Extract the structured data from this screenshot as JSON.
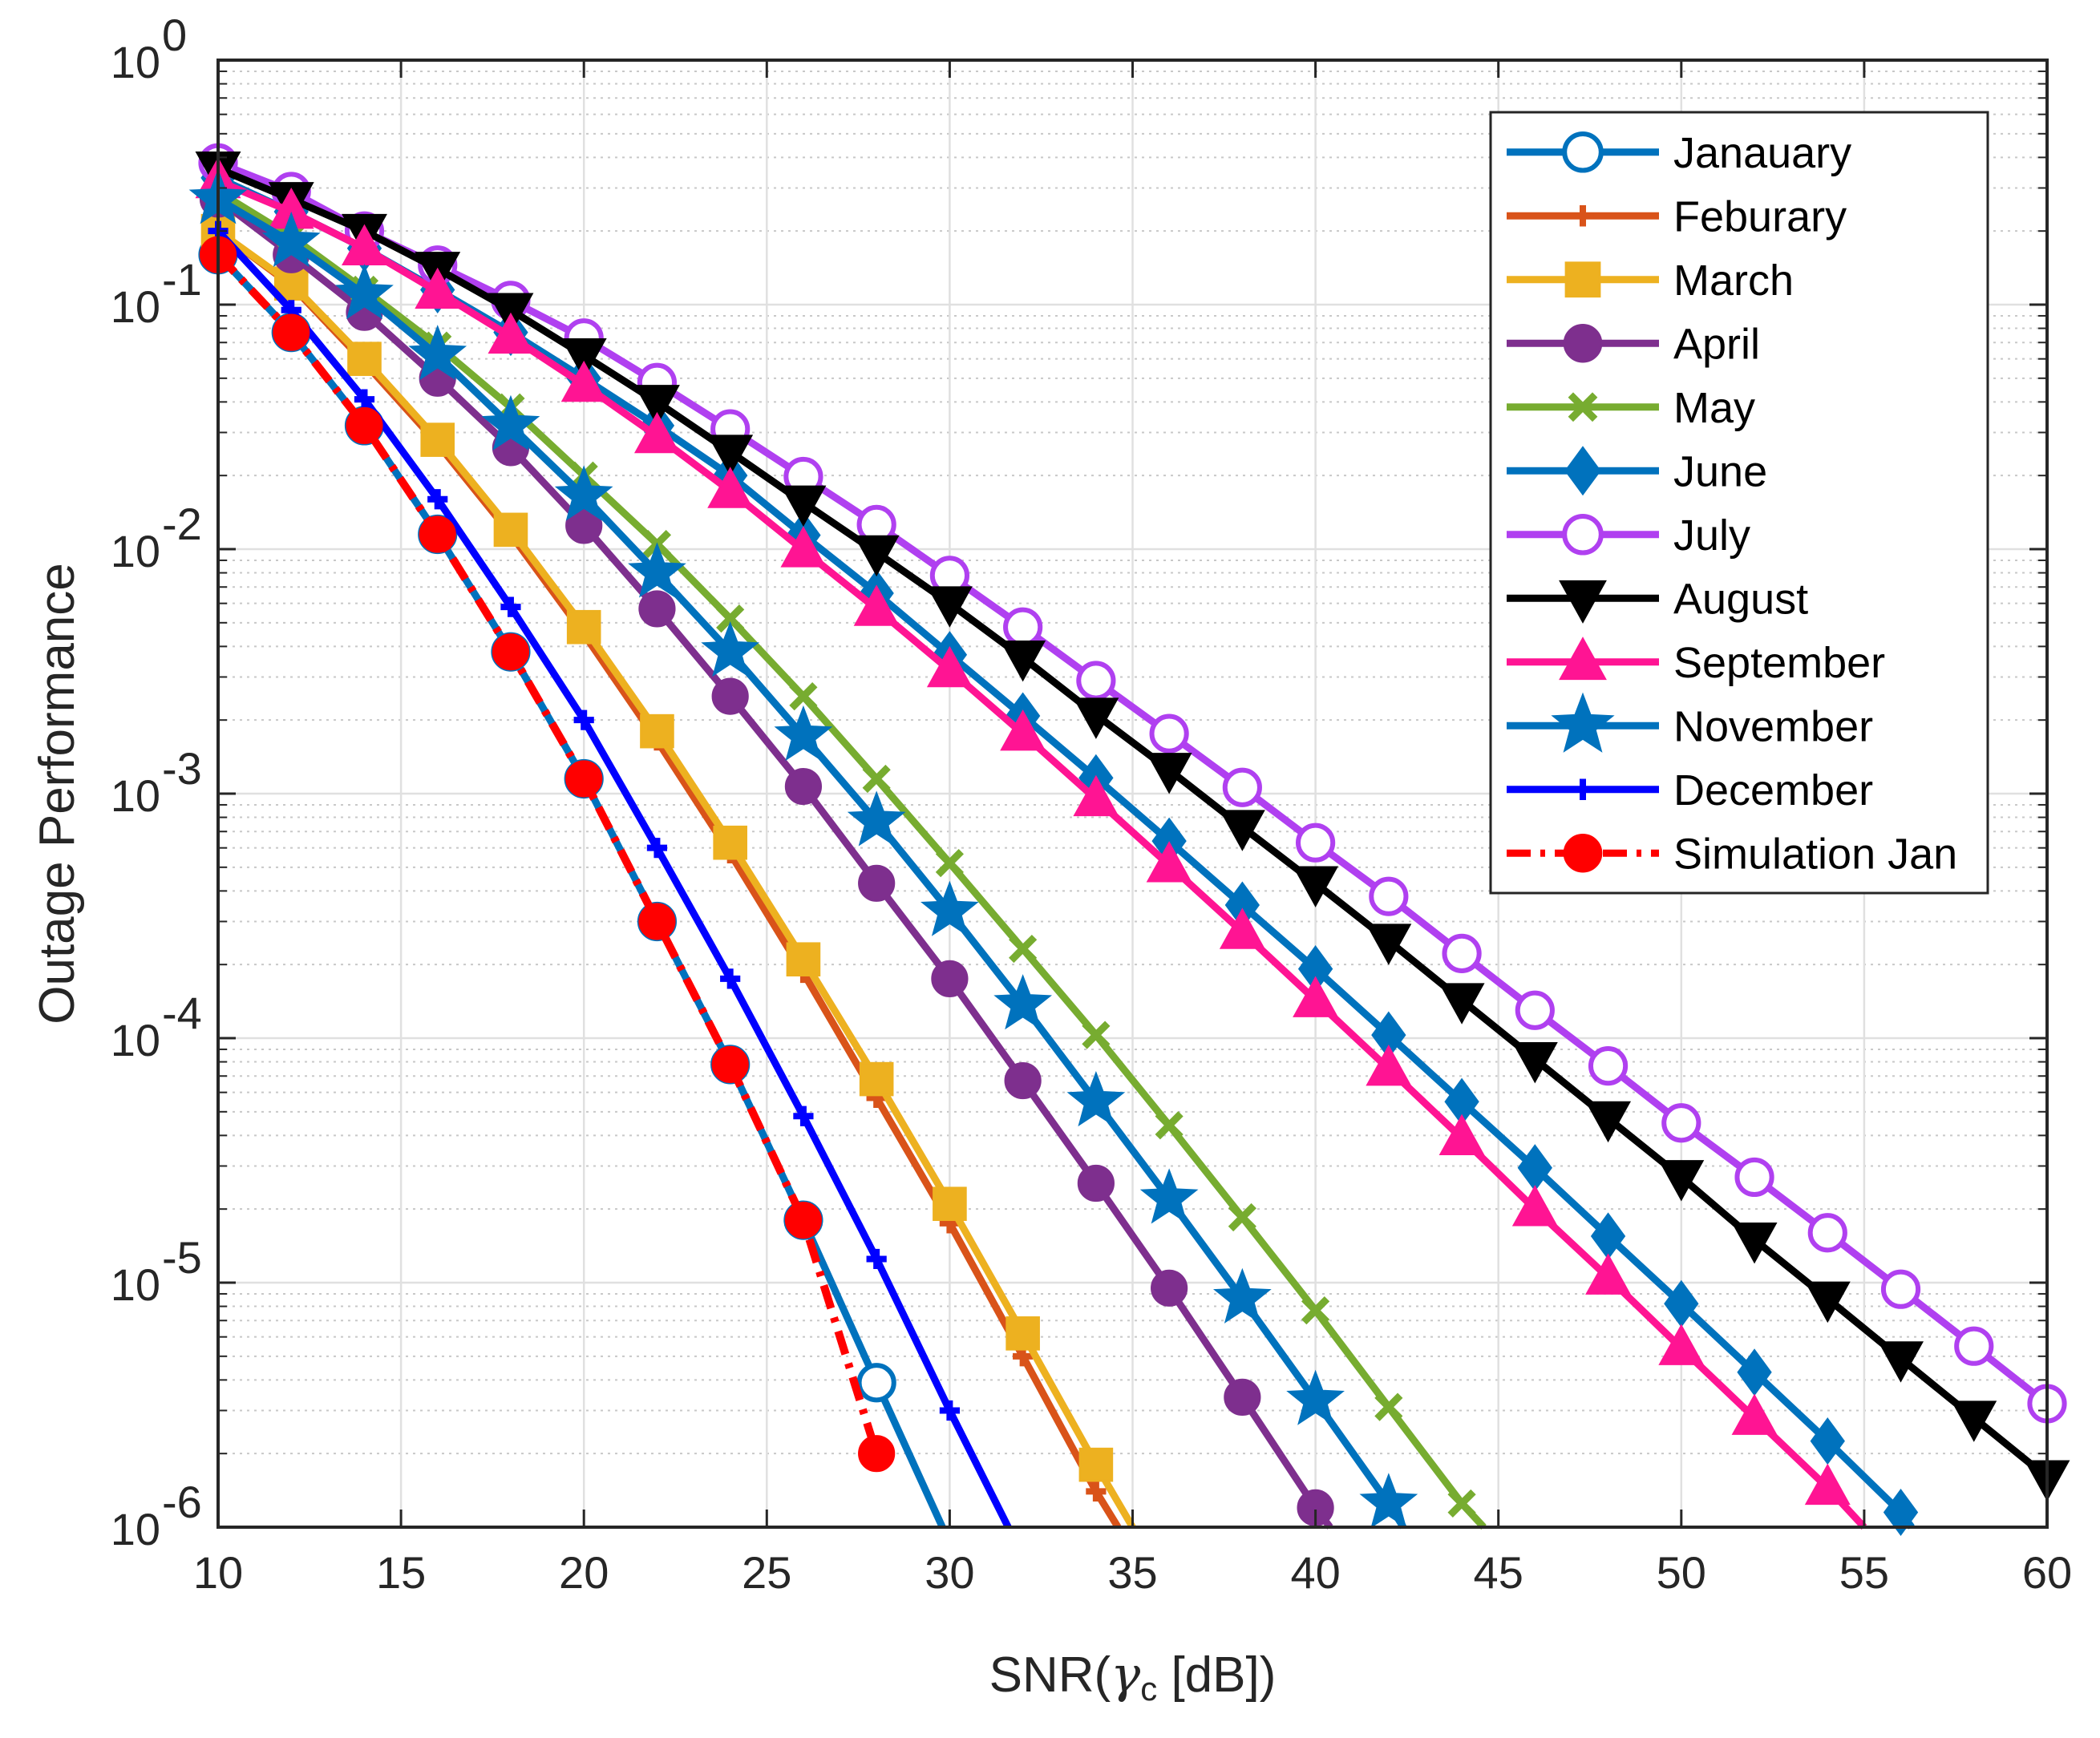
{
  "chart_data": {
    "type": "line",
    "yscale": "log",
    "xlabel": "SNR(γc [dB])",
    "xlabel_parts": {
      "prefix": "SNR(",
      "symbol": "γ",
      "subscript": "c",
      "suffix": " [dB])"
    },
    "ylabel": "Outage Performance",
    "xlim": [
      10,
      60
    ],
    "ylim": [
      1e-06,
      1
    ],
    "xticks": [
      10,
      15,
      20,
      25,
      30,
      35,
      40,
      45,
      50,
      55,
      60
    ],
    "yticks": [
      {
        "value": 1,
        "base": "10",
        "exp": "0"
      },
      {
        "value": 0.1,
        "base": "10",
        "exp": "-1"
      },
      {
        "value": 0.01,
        "base": "10",
        "exp": "-2"
      },
      {
        "value": 0.001,
        "base": "10",
        "exp": "-3"
      },
      {
        "value": 0.0001,
        "base": "10",
        "exp": "-4"
      },
      {
        "value": 1e-05,
        "base": "10",
        "exp": "-5"
      },
      {
        "value": 1e-06,
        "base": "10",
        "exp": "-6"
      }
    ],
    "grid": true,
    "legend_position": "top-right",
    "series": [
      {
        "name": "Janauary",
        "color": "#0072BD",
        "marker": "circle",
        "dash": "solid",
        "points": [
          [
            10,
            0.16
          ],
          [
            12,
            0.077
          ],
          [
            14,
            0.032
          ],
          [
            16,
            0.0115
          ],
          [
            18,
            0.0038
          ],
          [
            20,
            0.00115
          ],
          [
            22,
            0.0003
          ],
          [
            24,
            7.8e-05
          ],
          [
            26,
            1.8e-05
          ],
          [
            28,
            3.9e-06
          ],
          [
            29.8,
            1e-06
          ]
        ]
      },
      {
        "name": "Feburary",
        "color": "#D95319",
        "marker": "plus",
        "dash": "solid",
        "points": [
          [
            10,
            0.2
          ],
          [
            12,
            0.12
          ],
          [
            14,
            0.058
          ],
          [
            16,
            0.027
          ],
          [
            18,
            0.0115
          ],
          [
            20,
            0.0045
          ],
          [
            22,
            0.00165
          ],
          [
            24,
            0.00057
          ],
          [
            26,
            0.000185
          ],
          [
            28,
            5.7e-05
          ],
          [
            30,
            1.75e-05
          ],
          [
            32,
            5e-06
          ],
          [
            34,
            1.4e-06
          ],
          [
            34.6,
            1e-06
          ]
        ]
      },
      {
        "name": "March",
        "color": "#EDB120",
        "marker": "square",
        "dash": "solid",
        "points": [
          [
            10,
            0.2
          ],
          [
            12,
            0.122
          ],
          [
            14,
            0.06
          ],
          [
            16,
            0.028
          ],
          [
            18,
            0.012
          ],
          [
            20,
            0.0048
          ],
          [
            22,
            0.0018
          ],
          [
            24,
            0.00063
          ],
          [
            26,
            0.00021
          ],
          [
            28,
            6.8e-05
          ],
          [
            30,
            2.1e-05
          ],
          [
            32,
            6.2e-06
          ],
          [
            34,
            1.8e-06
          ],
          [
            35,
            1e-06
          ]
        ]
      },
      {
        "name": "April",
        "color": "#7E2F8E",
        "marker": "dot",
        "dash": "solid",
        "points": [
          [
            10,
            0.27
          ],
          [
            12,
            0.16
          ],
          [
            14,
            0.093
          ],
          [
            16,
            0.05
          ],
          [
            18,
            0.026
          ],
          [
            20,
            0.0125
          ],
          [
            22,
            0.0057
          ],
          [
            24,
            0.0025
          ],
          [
            26,
            0.00107
          ],
          [
            28,
            0.00043
          ],
          [
            30,
            0.000175
          ],
          [
            32,
            6.7e-05
          ],
          [
            34,
            2.55e-05
          ],
          [
            36,
            9.5e-06
          ],
          [
            38,
            3.4e-06
          ],
          [
            40,
            1.2e-06
          ],
          [
            40.4,
            1e-06
          ]
        ]
      },
      {
        "name": "May",
        "color": "#77AC30",
        "marker": "x",
        "dash": "solid",
        "points": [
          [
            10,
            0.29
          ],
          [
            12,
            0.19
          ],
          [
            14,
            0.115
          ],
          [
            16,
            0.068
          ],
          [
            18,
            0.038
          ],
          [
            20,
            0.02
          ],
          [
            22,
            0.0105
          ],
          [
            24,
            0.0052
          ],
          [
            26,
            0.0025
          ],
          [
            28,
            0.00115
          ],
          [
            30,
            0.00052
          ],
          [
            32,
            0.000232
          ],
          [
            34,
            0.000103
          ],
          [
            36,
            4.4e-05
          ],
          [
            38,
            1.85e-05
          ],
          [
            40,
            7.7e-06
          ],
          [
            42,
            3.1e-06
          ],
          [
            44,
            1.25e-06
          ],
          [
            44.6,
            1e-06
          ]
        ]
      },
      {
        "name": "June",
        "color": "#0072BD",
        "marker": "diamond",
        "dash": "solid",
        "points": [
          [
            10,
            0.33
          ],
          [
            12,
            0.24
          ],
          [
            14,
            0.17
          ],
          [
            16,
            0.115
          ],
          [
            18,
            0.077
          ],
          [
            20,
            0.05
          ],
          [
            22,
            0.032
          ],
          [
            24,
            0.02
          ],
          [
            26,
            0.0114
          ],
          [
            28,
            0.0066
          ],
          [
            30,
            0.0037
          ],
          [
            32,
            0.00208
          ],
          [
            34,
            0.00116
          ],
          [
            36,
            0.00064
          ],
          [
            38,
            0.00035
          ],
          [
            40,
            0.000192
          ],
          [
            42,
            0.000103
          ],
          [
            44,
            5.5e-05
          ],
          [
            46,
            2.95e-05
          ],
          [
            48,
            1.55e-05
          ],
          [
            50,
            8.2e-06
          ],
          [
            52,
            4.3e-06
          ],
          [
            54,
            2.25e-06
          ],
          [
            56,
            1.15e-06
          ],
          [
            56.3,
            1e-06
          ]
        ]
      },
      {
        "name": "July",
        "color": "#B040F0",
        "marker": "circle",
        "dash": "solid",
        "points": [
          [
            10,
            0.38
          ],
          [
            12,
            0.29
          ],
          [
            14,
            0.2
          ],
          [
            16,
            0.145
          ],
          [
            18,
            0.104
          ],
          [
            20,
            0.073
          ],
          [
            22,
            0.048
          ],
          [
            24,
            0.031
          ],
          [
            26,
            0.0198
          ],
          [
            28,
            0.0126
          ],
          [
            30,
            0.0078
          ],
          [
            32,
            0.0048
          ],
          [
            34,
            0.0029
          ],
          [
            36,
            0.00176
          ],
          [
            38,
            0.00106
          ],
          [
            40,
            0.00063
          ],
          [
            42,
            0.00038
          ],
          [
            44,
            0.000222
          ],
          [
            46,
            0.00013
          ],
          [
            48,
            7.7e-05
          ],
          [
            50,
            4.5e-05
          ],
          [
            52,
            2.7e-05
          ],
          [
            54,
            1.6e-05
          ],
          [
            56,
            9.4e-06
          ],
          [
            58,
            5.5e-06
          ],
          [
            60,
            3.2e-06
          ]
        ]
      },
      {
        "name": "August",
        "color": "#000000",
        "marker": "triangle-down",
        "dash": "solid",
        "points": [
          [
            10,
            0.36
          ],
          [
            12,
            0.27
          ],
          [
            14,
            0.2
          ],
          [
            16,
            0.14
          ],
          [
            18,
            0.095
          ],
          [
            20,
            0.062
          ],
          [
            22,
            0.04
          ],
          [
            24,
            0.025
          ],
          [
            26,
            0.0155
          ],
          [
            28,
            0.0097
          ],
          [
            30,
            0.006
          ],
          [
            32,
            0.0036
          ],
          [
            34,
            0.0021
          ],
          [
            36,
            0.00125
          ],
          [
            38,
            0.00073
          ],
          [
            40,
            0.00043
          ],
          [
            42,
            0.00025
          ],
          [
            44,
            0.000143
          ],
          [
            46,
            8.2e-05
          ],
          [
            48,
            4.7e-05
          ],
          [
            50,
            2.7e-05
          ],
          [
            52,
            1.5e-05
          ],
          [
            54,
            8.6e-06
          ],
          [
            56,
            4.9e-06
          ],
          [
            58,
            2.8e-06
          ],
          [
            60,
            1.6e-06
          ]
        ]
      },
      {
        "name": "September",
        "color": "#FF1493",
        "marker": "triangle-up",
        "dash": "solid",
        "points": [
          [
            10,
            0.32
          ],
          [
            12,
            0.24
          ],
          [
            14,
            0.17
          ],
          [
            16,
            0.113
          ],
          [
            18,
            0.074
          ],
          [
            20,
            0.047
          ],
          [
            22,
            0.029
          ],
          [
            24,
            0.0173
          ],
          [
            26,
            0.0099
          ],
          [
            28,
            0.0057
          ],
          [
            30,
            0.0032
          ],
          [
            32,
            0.00176
          ],
          [
            34,
            0.00095
          ],
          [
            36,
            0.00051
          ],
          [
            38,
            0.000272
          ],
          [
            40,
            0.000143
          ],
          [
            42,
            7.5e-05
          ],
          [
            44,
            3.9e-05
          ],
          [
            46,
            2e-05
          ],
          [
            48,
            1.05e-05
          ],
          [
            50,
            5.4e-06
          ],
          [
            52,
            2.8e-06
          ],
          [
            54,
            1.45e-06
          ],
          [
            55,
            1e-06
          ]
        ]
      },
      {
        "name": "November",
        "color": "#0072BD",
        "marker": "star",
        "dash": "solid",
        "points": [
          [
            10,
            0.27
          ],
          [
            12,
            0.18
          ],
          [
            14,
            0.11
          ],
          [
            16,
            0.062
          ],
          [
            18,
            0.032
          ],
          [
            20,
            0.0165
          ],
          [
            22,
            0.008
          ],
          [
            24,
            0.0038
          ],
          [
            26,
            0.00172
          ],
          [
            28,
            0.00077
          ],
          [
            30,
            0.00033
          ],
          [
            32,
            0.000137
          ],
          [
            34,
            5.5e-05
          ],
          [
            36,
            2.2e-05
          ],
          [
            38,
            8.6e-06
          ],
          [
            40,
            3.3e-06
          ],
          [
            42,
            1.25e-06
          ],
          [
            42.4,
            1e-06
          ]
        ]
      },
      {
        "name": "December",
        "color": "#0000FF",
        "marker": "plus",
        "dash": "solid",
        "points": [
          [
            10,
            0.2
          ],
          [
            12,
            0.095
          ],
          [
            14,
            0.041
          ],
          [
            16,
            0.016
          ],
          [
            18,
            0.0058
          ],
          [
            20,
            0.002
          ],
          [
            22,
            0.0006
          ],
          [
            24,
            0.000175
          ],
          [
            26,
            4.8e-05
          ],
          [
            28,
            1.25e-05
          ],
          [
            30,
            3e-06
          ],
          [
            31.6,
            1e-06
          ]
        ]
      },
      {
        "name": "Simulation Jan",
        "color": "#FF0000",
        "marker": "dot",
        "dash": "dashdot",
        "points": [
          [
            10,
            0.16
          ],
          [
            12,
            0.077
          ],
          [
            14,
            0.032
          ],
          [
            16,
            0.0115
          ],
          [
            18,
            0.0038
          ],
          [
            20,
            0.00115
          ],
          [
            22,
            0.0003
          ],
          [
            24,
            7.8e-05
          ],
          [
            26,
            1.8e-05
          ],
          [
            28,
            2e-06
          ]
        ]
      }
    ]
  }
}
